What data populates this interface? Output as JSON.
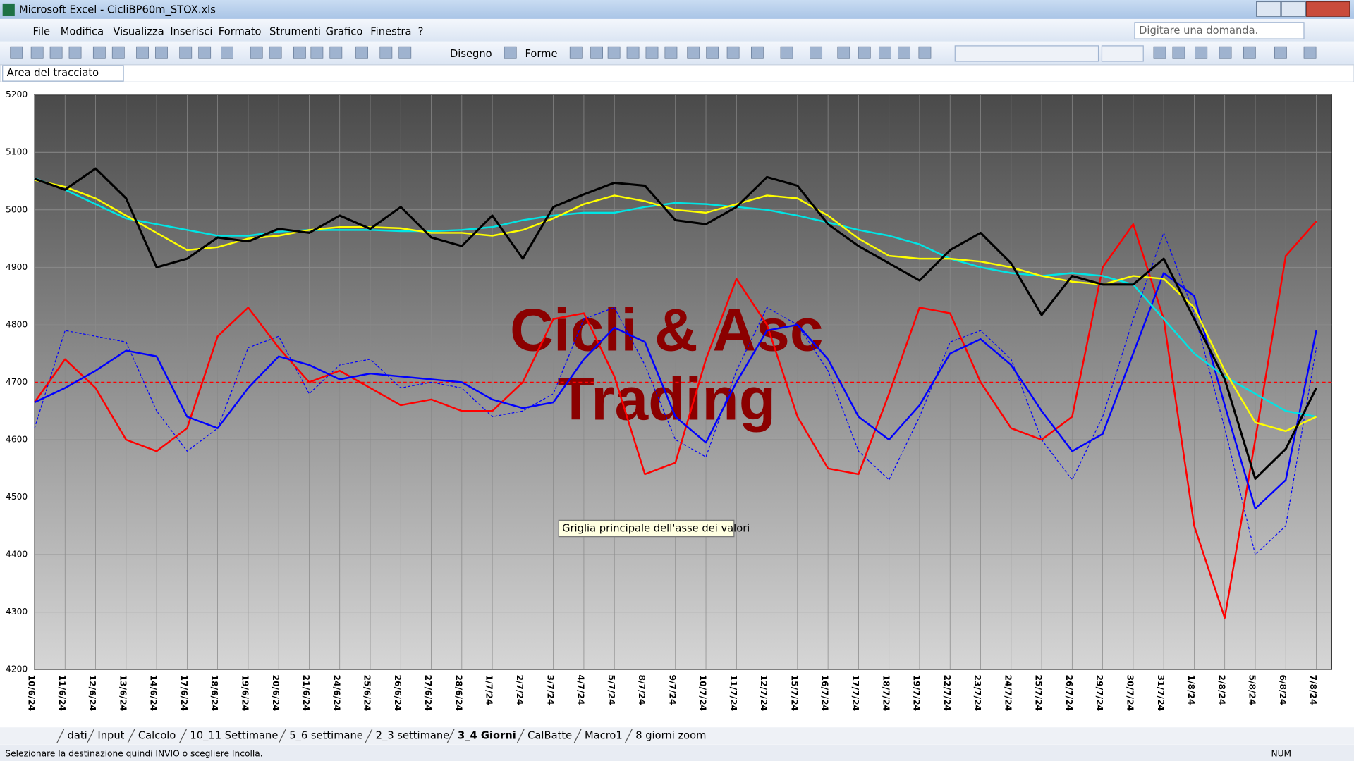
{
  "window": {
    "title": "Microsoft Excel - CicliBP60m_STOX.xls"
  },
  "menu": [
    "File",
    "Modifica",
    "Visualizza",
    "Inserisci",
    "Formato",
    "Strumenti",
    "Grafico",
    "Finestra",
    "?"
  ],
  "help_box": "Digitare una domanda.",
  "toolbar": {
    "draw": "Disegno",
    "shapes": "Forme"
  },
  "name_box": "Area del tracciato",
  "tooltip": "Griglia principale dell'asse dei valori",
  "sheet_tabs": [
    "dati",
    "Input",
    "Calcolo",
    "10_11 Settimane",
    "5_6 settimane",
    "2_3 settimane",
    "3_4 Giorni",
    "CalBatte",
    "Macro1",
    "8 giorni zoom"
  ],
  "active_tab": 6,
  "status": "Selezionare la destinazione quindi INVIO o scegliere Incolla.",
  "status_num": "NUM",
  "chart_data": {
    "type": "line",
    "annotations": [
      "Cicli & Asc",
      "Trading"
    ],
    "categories": [
      "10/6/24",
      "11/6/24",
      "12/6/24",
      "13/6/24",
      "14/6/24",
      "17/6/24",
      "18/6/24",
      "19/6/24",
      "20/6/24",
      "21/6/24",
      "24/6/24",
      "25/6/24",
      "26/6/24",
      "27/6/24",
      "28/6/24",
      "1/7/24",
      "2/7/24",
      "3/7/24",
      "4/7/24",
      "5/7/24",
      "8/7/24",
      "9/7/24",
      "10/7/24",
      "11/7/24",
      "12/7/24",
      "15/7/24",
      "16/7/24",
      "17/7/24",
      "18/7/24",
      "19/7/24",
      "22/7/24",
      "23/7/24",
      "24/7/24",
      "25/7/24",
      "26/7/24",
      "29/7/24",
      "30/7/24",
      "31/7/24",
      "1/8/24",
      "2/8/24",
      "5/8/24",
      "6/8/24",
      "7/8/24"
    ],
    "ylim": [
      4200,
      5200
    ],
    "yticks": [
      4200,
      4300,
      4400,
      4500,
      4600,
      4700,
      4800,
      4900,
      5000,
      5100,
      5200
    ],
    "grid": true,
    "hlines": [
      {
        "value": 4700,
        "color": "#ff0000",
        "dash": true
      }
    ],
    "series": [
      {
        "color": "#0000ff",
        "dash": true,
        "values": [
          4620,
          4790,
          4780,
          4770,
          4650,
          4580,
          4620,
          4760,
          4780,
          4680,
          4730,
          4740,
          4690,
          4700,
          4690,
          4640,
          4650,
          4680,
          4810,
          4830,
          4730,
          4600,
          4570,
          4720,
          4830,
          4800,
          4720,
          4580,
          4530,
          4640,
          4770,
          4790,
          4740,
          4600,
          4530,
          4640,
          4810,
          4960,
          4820,
          4620,
          4400,
          4450,
          4760
        ]
      },
      {
        "color": "#ff0000",
        "dash": false,
        "values": [
          4665,
          4740,
          4690,
          4600,
          4580,
          4620,
          4780,
          4830,
          4760,
          4700,
          4720,
          4690,
          4660,
          4670,
          4650,
          4650,
          4700,
          4810,
          4820,
          4710,
          4540,
          4560,
          4740,
          4880,
          4800,
          4640,
          4550,
          4540,
          4680,
          4830,
          4820,
          4700,
          4620,
          4600,
          4640,
          4900,
          4975,
          4810,
          4450,
          4290,
          4600,
          4920,
          4980
        ]
      },
      {
        "color": "#0000ff",
        "dash": false,
        "values": [
          4665,
          4690,
          4720,
          4755,
          4745,
          4640,
          4620,
          4690,
          4745,
          4730,
          4705,
          4715,
          4710,
          4705,
          4700,
          4670,
          4655,
          4665,
          4740,
          4795,
          4770,
          4640,
          4595,
          4700,
          4790,
          4800,
          4740,
          4640,
          4600,
          4660,
          4750,
          4775,
          4730,
          4650,
          4580,
          4610,
          4750,
          4890,
          4850,
          4660,
          4480,
          4530,
          4790
        ]
      },
      {
        "color": "#00e5e5",
        "dash": false,
        "values": [
          5055,
          5035,
          5010,
          4985,
          4975,
          4965,
          4955,
          4955,
          4962,
          4965,
          4965,
          4965,
          4963,
          4963,
          4965,
          4970,
          4982,
          4990,
          4995,
          4995,
          5005,
          5012,
          5010,
          5005,
          5000,
          4990,
          4978,
          4965,
          4955,
          4940,
          4915,
          4900,
          4890,
          4885,
          4890,
          4885,
          4870,
          4810,
          4750,
          4710,
          4680,
          4650,
          4640
        ]
      },
      {
        "color": "#ffff00",
        "dash": false,
        "values": [
          5052,
          5040,
          5020,
          4990,
          4960,
          4930,
          4935,
          4950,
          4955,
          4965,
          4970,
          4970,
          4968,
          4960,
          4960,
          4955,
          4965,
          4985,
          5010,
          5025,
          5015,
          5000,
          4995,
          5010,
          5025,
          5020,
          4990,
          4950,
          4920,
          4915,
          4915,
          4910,
          4900,
          4885,
          4875,
          4870,
          4885,
          4880,
          4830,
          4720,
          4630,
          4615,
          4640
        ]
      },
      {
        "color": "#000000",
        "dash": false,
        "values": [
          5054,
          5035,
          5072,
          5020,
          4900,
          4915,
          4952,
          4945,
          4967,
          4960,
          4990,
          4967,
          5005,
          4952,
          4937,
          4990,
          4915,
          5005,
          5027,
          5047,
          5042,
          4982,
          4975,
          5005,
          5057,
          5042,
          4975,
          4937,
          4907,
          4877,
          4930,
          4960,
          4907,
          4817,
          4885,
          4870,
          4870,
          4915,
          4810,
          4705,
          4532,
          4584,
          4690
        ]
      }
    ]
  }
}
